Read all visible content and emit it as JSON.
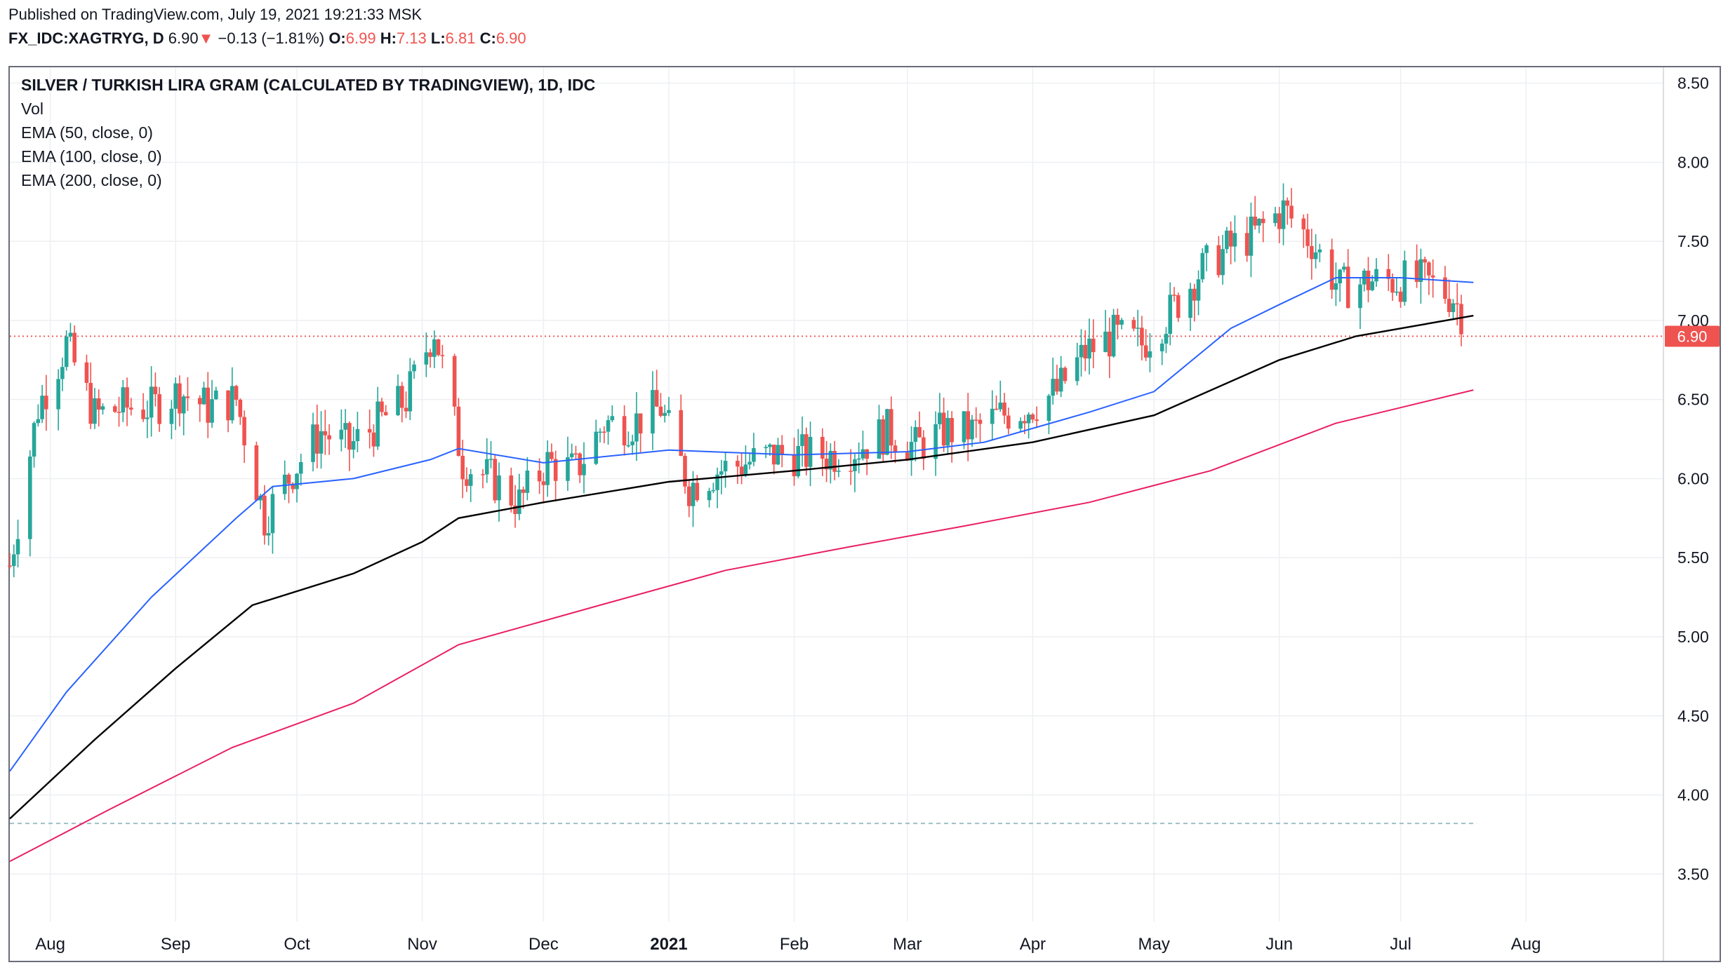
{
  "header": {
    "published": "Published on TradingView.com, July 19, 2021 19:21:33 MSK",
    "symbol": "FX_IDC:XAGTRYG, D",
    "last": "6.90",
    "arrow": "▼",
    "change": "−0.13 (−1.81%)",
    "o_label": "O:",
    "o": "6.99",
    "h_label": "H:",
    "h": "7.13",
    "l_label": "L:",
    "l": "6.81",
    "c_label": "C:",
    "c": "6.90"
  },
  "legend": {
    "title": "SILVER / TURKISH LIRA GRAM (CALCULATED BY TRADINGVIEW), 1D, IDC",
    "items": [
      "Vol",
      "EMA (50, close, 0)",
      "EMA (100, close, 0)",
      "EMA (200, close, 0)"
    ]
  },
  "colors": {
    "up": "#26a69a",
    "down": "#ef5350",
    "ema50": "#2962ff",
    "ema100": "#000000",
    "ema200": "#e91e63",
    "grid": "#eeeff2",
    "price_label_bg": "#ef5350"
  },
  "chart_data": {
    "type": "candlestick",
    "y_axis_ticks": [
      "8.50",
      "8.00",
      "7.50",
      "7.00",
      "6.50",
      "6.00",
      "5.50",
      "5.00",
      "4.50",
      "4.00",
      "3.50"
    ],
    "ylim": [
      3.2,
      8.6
    ],
    "x_axis_ticks": [
      {
        "label": "Aug",
        "date": "2020-08-01"
      },
      {
        "label": "Sep",
        "date": "2020-09-01"
      },
      {
        "label": "Oct",
        "date": "2020-10-01"
      },
      {
        "label": "Nov",
        "date": "2020-11-01"
      },
      {
        "label": "Dec",
        "date": "2020-12-01"
      },
      {
        "label": "2021",
        "date": "2021-01-01"
      },
      {
        "label": "Feb",
        "date": "2021-02-01"
      },
      {
        "label": "Mar",
        "date": "2021-03-01"
      },
      {
        "label": "Apr",
        "date": "2021-04-01"
      },
      {
        "label": "May",
        "date": "2021-05-01"
      },
      {
        "label": "Jun",
        "date": "2021-06-01"
      },
      {
        "label": "Jul",
        "date": "2021-07-01"
      },
      {
        "label": "Aug",
        "date": "2021-08-01"
      }
    ],
    "x_range": [
      "2020-07-22",
      "2021-09-04"
    ],
    "current_price": 6.9,
    "current_price_label": "6.90",
    "support_level": 3.82,
    "candles_close_weekly": [
      {
        "date": "2020-07-22",
        "c": 5.45
      },
      {
        "date": "2020-07-29",
        "c": 6.45
      },
      {
        "date": "2020-08-05",
        "c": 6.85
      },
      {
        "date": "2020-08-12",
        "c": 6.4
      },
      {
        "date": "2020-08-19",
        "c": 6.45
      },
      {
        "date": "2020-08-26",
        "c": 6.45
      },
      {
        "date": "2020-09-02",
        "c": 6.55
      },
      {
        "date": "2020-09-09",
        "c": 6.45
      },
      {
        "date": "2020-09-16",
        "c": 6.5
      },
      {
        "date": "2020-09-23",
        "c": 5.75
      },
      {
        "date": "2020-09-30",
        "c": 6.05
      },
      {
        "date": "2020-10-07",
        "c": 6.3
      },
      {
        "date": "2020-10-14",
        "c": 6.2
      },
      {
        "date": "2020-10-21",
        "c": 6.35
      },
      {
        "date": "2020-10-28",
        "c": 6.5
      },
      {
        "date": "2020-11-04",
        "c": 6.95
      },
      {
        "date": "2020-11-11",
        "c": 6.1
      },
      {
        "date": "2020-11-18",
        "c": 6.0
      },
      {
        "date": "2020-11-25",
        "c": 5.85
      },
      {
        "date": "2020-12-02",
        "c": 6.1
      },
      {
        "date": "2020-12-09",
        "c": 6.05
      },
      {
        "date": "2020-12-16",
        "c": 6.35
      },
      {
        "date": "2020-12-23",
        "c": 6.35
      },
      {
        "date": "2020-12-30",
        "c": 6.45
      },
      {
        "date": "2021-01-06",
        "c": 5.95
      },
      {
        "date": "2021-01-13",
        "c": 6.05
      },
      {
        "date": "2021-01-20",
        "c": 6.1
      },
      {
        "date": "2021-01-27",
        "c": 6.15
      },
      {
        "date": "2021-02-03",
        "c": 6.15
      },
      {
        "date": "2021-02-10",
        "c": 6.15
      },
      {
        "date": "2021-02-17",
        "c": 6.2
      },
      {
        "date": "2021-02-24",
        "c": 6.3
      },
      {
        "date": "2021-03-03",
        "c": 6.2
      },
      {
        "date": "2021-03-10",
        "c": 6.3
      },
      {
        "date": "2021-03-17",
        "c": 6.3
      },
      {
        "date": "2021-03-24",
        "c": 6.4
      },
      {
        "date": "2021-03-31",
        "c": 6.45
      },
      {
        "date": "2021-04-07",
        "c": 6.55
      },
      {
        "date": "2021-04-14",
        "c": 6.8
      },
      {
        "date": "2021-04-21",
        "c": 6.9
      },
      {
        "date": "2021-04-28",
        "c": 6.85
      },
      {
        "date": "2021-05-05",
        "c": 7.05
      },
      {
        "date": "2021-05-12",
        "c": 7.3
      },
      {
        "date": "2021-05-19",
        "c": 7.45
      },
      {
        "date": "2021-05-26",
        "c": 7.55
      },
      {
        "date": "2021-06-02",
        "c": 7.7
      },
      {
        "date": "2021-06-09",
        "c": 7.5
      },
      {
        "date": "2021-06-16",
        "c": 7.2
      },
      {
        "date": "2021-06-23",
        "c": 7.25
      },
      {
        "date": "2021-06-30",
        "c": 7.25
      },
      {
        "date": "2021-07-07",
        "c": 7.25
      },
      {
        "date": "2021-07-14",
        "c": 7.15
      },
      {
        "date": "2021-07-19",
        "c": 6.9
      }
    ],
    "series": [
      {
        "name": "EMA (50, close, 0)",
        "color": "#2962ff",
        "points": [
          {
            "date": "2020-07-22",
            "v": 4.15
          },
          {
            "date": "2020-08-05",
            "v": 4.65
          },
          {
            "date": "2020-08-26",
            "v": 5.25
          },
          {
            "date": "2020-09-16",
            "v": 5.75
          },
          {
            "date": "2020-09-25",
            "v": 5.95
          },
          {
            "date": "2020-10-15",
            "v": 6.0
          },
          {
            "date": "2020-11-03",
            "v": 6.12
          },
          {
            "date": "2020-11-10",
            "v": 6.19
          },
          {
            "date": "2020-12-01",
            "v": 6.1
          },
          {
            "date": "2021-01-01",
            "v": 6.18
          },
          {
            "date": "2021-02-01",
            "v": 6.15
          },
          {
            "date": "2021-03-01",
            "v": 6.17
          },
          {
            "date": "2021-03-20",
            "v": 6.23
          },
          {
            "date": "2021-04-15",
            "v": 6.42
          },
          {
            "date": "2021-05-01",
            "v": 6.55
          },
          {
            "date": "2021-05-20",
            "v": 6.95
          },
          {
            "date": "2021-06-01",
            "v": 7.1
          },
          {
            "date": "2021-06-15",
            "v": 7.27
          },
          {
            "date": "2021-07-01",
            "v": 7.27
          },
          {
            "date": "2021-07-19",
            "v": 7.24
          }
        ]
      },
      {
        "name": "EMA (100, close, 0)",
        "color": "#000000",
        "points": [
          {
            "date": "2020-07-22",
            "v": 3.85
          },
          {
            "date": "2020-08-12",
            "v": 4.35
          },
          {
            "date": "2020-09-01",
            "v": 4.8
          },
          {
            "date": "2020-09-20",
            "v": 5.2
          },
          {
            "date": "2020-10-15",
            "v": 5.4
          },
          {
            "date": "2020-11-01",
            "v": 5.6
          },
          {
            "date": "2020-11-10",
            "v": 5.75
          },
          {
            "date": "2020-12-01",
            "v": 5.85
          },
          {
            "date": "2021-01-01",
            "v": 5.98
          },
          {
            "date": "2021-02-01",
            "v": 6.05
          },
          {
            "date": "2021-03-01",
            "v": 6.12
          },
          {
            "date": "2021-04-01",
            "v": 6.23
          },
          {
            "date": "2021-05-01",
            "v": 6.4
          },
          {
            "date": "2021-06-01",
            "v": 6.75
          },
          {
            "date": "2021-06-20",
            "v": 6.9
          },
          {
            "date": "2021-07-19",
            "v": 7.03
          }
        ]
      },
      {
        "name": "EMA (200, close, 0)",
        "color": "#e91e63",
        "points": [
          {
            "date": "2020-07-22",
            "v": 3.58
          },
          {
            "date": "2020-08-15",
            "v": 3.9
          },
          {
            "date": "2020-09-15",
            "v": 4.3
          },
          {
            "date": "2020-10-15",
            "v": 4.58
          },
          {
            "date": "2020-11-10",
            "v": 4.95
          },
          {
            "date": "2020-12-15",
            "v": 5.2
          },
          {
            "date": "2021-01-15",
            "v": 5.42
          },
          {
            "date": "2021-02-15",
            "v": 5.57
          },
          {
            "date": "2021-03-15",
            "v": 5.7
          },
          {
            "date": "2021-04-15",
            "v": 5.85
          },
          {
            "date": "2021-05-15",
            "v": 6.05
          },
          {
            "date": "2021-06-15",
            "v": 6.35
          },
          {
            "date": "2021-07-19",
            "v": 6.56
          }
        ]
      }
    ]
  }
}
